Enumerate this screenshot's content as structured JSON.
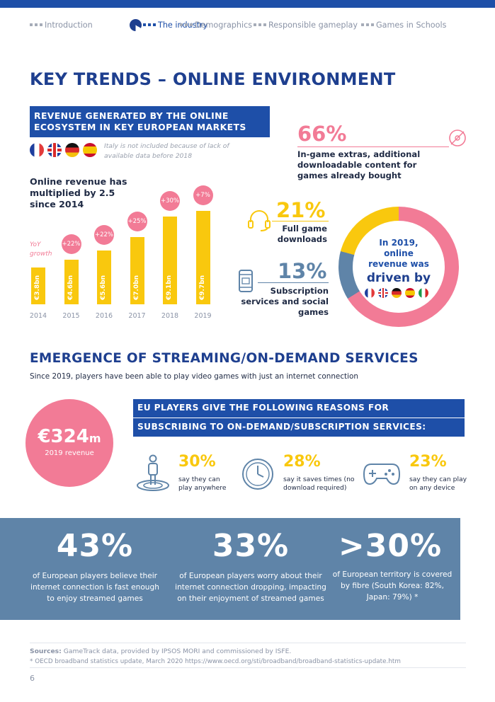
{
  "nav": {
    "items": [
      "Introduction",
      "The industry",
      "Demographics",
      "Responsible gameplay",
      "Games in Schools"
    ],
    "active": "The industry"
  },
  "section1": {
    "title": "KEY TRENDS – ONLINE ENVIRONMENT",
    "box_line1": "REVENUE GENERATED BY THE ONLINE",
    "box_line2": "ECOSYSTEM IN KEY EUROPEAN MARKETS",
    "note_line1": "Italy is not included because of lack of",
    "note_line2": "available data before 2018",
    "multiplied_line1": "Online revenue has",
    "multiplied_line2": "multiplied by 2.5",
    "multiplied_line3": "since 2014",
    "yoy_line1": "YoY",
    "yoy_line2": "growth"
  },
  "chart_data": {
    "type": "bar",
    "categories": [
      "2014",
      "2015",
      "2016",
      "2017",
      "2018",
      "2019"
    ],
    "values": [
      3.8,
      4.6,
      5.6,
      7.0,
      9.1,
      9.7
    ],
    "value_labels": [
      "€3.8bn",
      "€4.6bn",
      "€5.6bn",
      "€7.0bn",
      "€9.1bn",
      "€9.7bn"
    ],
    "growth_labels": [
      "",
      "+22%",
      "+22%",
      "+25%",
      "+30%",
      "+7%"
    ],
    "ylim": [
      0,
      10
    ],
    "colors": {
      "bar": "#f9c80e",
      "bubble": "#f27b96"
    }
  },
  "stats_right": {
    "extras_pct": "66%",
    "extras_line1": "In-game extras, additional",
    "extras_line2": "downloadable content for",
    "extras_line3": "games already bought",
    "downloads_pct": "21%",
    "downloads_line1": "Full game",
    "downloads_line2": "downloads",
    "subs_pct": "13%",
    "subs_line1": "Subscription",
    "subs_line2": "services and social",
    "subs_line3": "games",
    "donut_line1": "In 2019,",
    "donut_line2": "online",
    "donut_line3": "revenue was",
    "donut_line4": "driven by",
    "donut_values": [
      66,
      13,
      21
    ]
  },
  "section2": {
    "title": "EMERGENCE OF STREAMING/ON-DEMAND SERVICES",
    "subtitle": "Since 2019, players have been able to play video games with just an internet connection",
    "revenue_value": "€324",
    "revenue_unit": "m",
    "revenue_label": "2019 revenue",
    "box_line1": "EU PLAYERS GIVE THE FOLLOWING REASONS FOR",
    "box_line2": "SUBSCRIBING TO ON-DEMAND/SUBSCRIPTION SERVICES:",
    "reasons": [
      {
        "pct": "30%",
        "line1": "say they can",
        "line2": "play anywhere"
      },
      {
        "pct": "28%",
        "line1": "say it saves times (no",
        "line2": "download required)"
      },
      {
        "pct": "23%",
        "line1": "say they can play",
        "line2": "on any device"
      }
    ]
  },
  "band": {
    "items": [
      {
        "big": "43%",
        "line1": "of European players believe their",
        "line2": "internet connection is fast enough",
        "line3": "to enjoy streamed games"
      },
      {
        "big": "33%",
        "line1": "of European players worry about their",
        "line2": "internet connection dropping, impacting",
        "line3": "on their enjoyment of streamed games"
      },
      {
        "big": ">30%",
        "line1": "of European territory is covered",
        "line2": "by fibre (South Korea: 82%,",
        "line3": "Japan: 79%) *"
      }
    ]
  },
  "footer": {
    "sources_label": "Sources:",
    "sources_text": "GameTrack data, provided by IPSOS MORI and commissioned by ISFE.",
    "footnote": "* OECD broadband statistics update, March 2020 https://www.oecd.org/sti/broadband/broadband-statistics-update.htm",
    "page_number": "6"
  },
  "colors": {
    "navy": "#1e3f8f",
    "blue": "#1e4fa8",
    "pink": "#f27b96",
    "yellow": "#f9c80e",
    "steel": "#5f84a8"
  }
}
